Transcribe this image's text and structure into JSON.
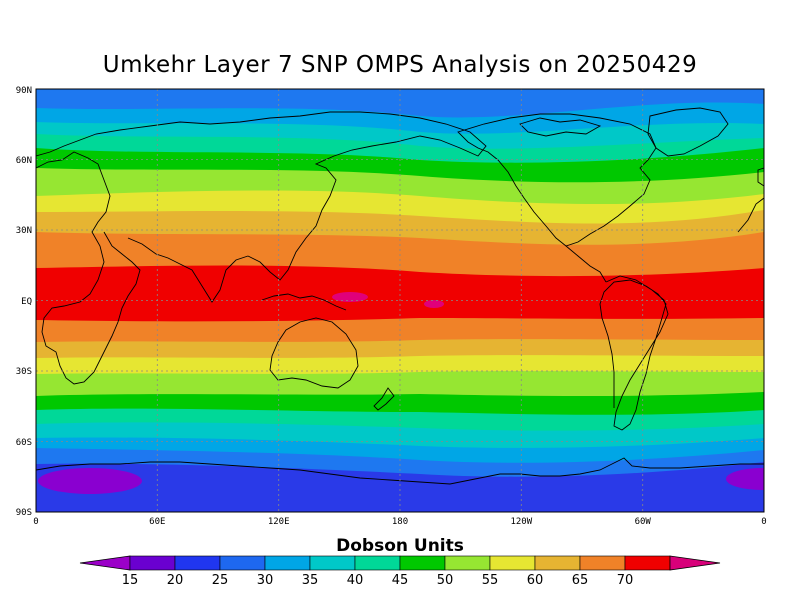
{
  "title": "Umkehr Layer 7 SNP OMPS Analysis on 20250429",
  "colorbar": {
    "label": "Dobson Units",
    "ticks": [
      "15",
      "20",
      "25",
      "30",
      "35",
      "40",
      "45",
      "50",
      "55",
      "60",
      "65",
      "70"
    ],
    "low_color": "#9b00c8",
    "high_color": "#d8007a",
    "colors": [
      "#6a00d0",
      "#2036f0",
      "#1e68f0",
      "#00a6e6",
      "#00c8c8",
      "#00d898",
      "#00c800",
      "#96e632",
      "#e6e632",
      "#e6b432",
      "#f08228",
      "#f00000"
    ]
  },
  "map": {
    "y_ticks": [
      "90N",
      "60N",
      "30N",
      "EQ",
      "30S",
      "60S",
      "90S"
    ],
    "x_ticks": [
      "0",
      "60E",
      "120E",
      "180",
      "120W",
      "60W",
      "0"
    ],
    "band_colors": {
      "c20": "#2a3ae8",
      "c25": "#1e78f0",
      "c30": "#00a6e6",
      "c35": "#00c8c8",
      "c40": "#00d898",
      "c45": "#00c800",
      "c50": "#96e632",
      "c55": "#e6e632",
      "c60": "#e6b432",
      "c65": "#f08228",
      "c70": "#f00000",
      "c15": "#8a00d0",
      "c75": "#e0007a"
    }
  }
}
